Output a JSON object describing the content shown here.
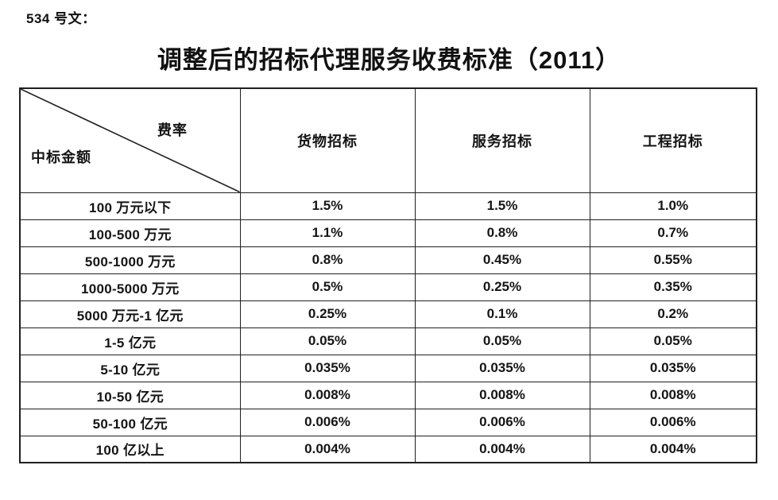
{
  "page": {
    "doc_label": "534 号文：",
    "title": "调整后的招标代理服务收费标准（2011）"
  },
  "table": {
    "corner": {
      "top_right_label": "费率",
      "bottom_left_label": "中标金额"
    },
    "columns": [
      "货物招标",
      "服务招标",
      "工程招标"
    ],
    "rows": [
      {
        "amount": "100 万元以下",
        "values": [
          "1.5%",
          "1.5%",
          "1.0%"
        ]
      },
      {
        "amount": "100-500 万元",
        "values": [
          "1.1%",
          "0.8%",
          "0.7%"
        ]
      },
      {
        "amount": "500-1000 万元",
        "values": [
          "0.8%",
          "0.45%",
          "0.55%"
        ]
      },
      {
        "amount": "1000-5000 万元",
        "values": [
          "0.5%",
          "0.25%",
          "0.35%"
        ]
      },
      {
        "amount": "5000 万元-1 亿元",
        "values": [
          "0.25%",
          "0.1%",
          "0.2%"
        ]
      },
      {
        "amount": "1-5 亿元",
        "values": [
          "0.05%",
          "0.05%",
          "0.05%"
        ]
      },
      {
        "amount": "5-10 亿元",
        "values": [
          "0.035%",
          "0.035%",
          "0.035%"
        ]
      },
      {
        "amount": "10-50 亿元",
        "values": [
          "0.008%",
          "0.008%",
          "0.008%"
        ]
      },
      {
        "amount": "50-100 亿元",
        "values": [
          "0.006%",
          "0.006%",
          "0.006%"
        ]
      },
      {
        "amount": "100 亿以上",
        "values": [
          "0.004%",
          "0.004%",
          "0.004%"
        ]
      }
    ]
  },
  "colors": {
    "text": "#141414",
    "border": "#1f1f1f",
    "background": "#ffffff"
  }
}
